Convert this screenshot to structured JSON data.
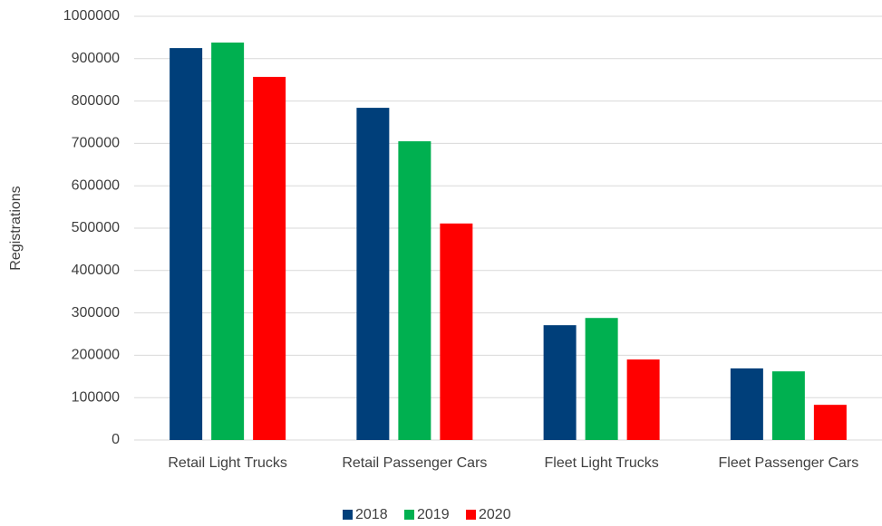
{
  "chart_data": {
    "type": "bar",
    "y_label": "Registrations",
    "categories": [
      "Retail Light Trucks",
      "Retail Passenger Cars",
      "Fleet Light Trucks",
      "Fleet Passenger Cars"
    ],
    "series": [
      {
        "name": "2018",
        "color": "#003f7a",
        "values": [
          925000,
          784000,
          271000,
          169000
        ]
      },
      {
        "name": "2019",
        "color": "#00b050",
        "values": [
          938000,
          705000,
          288000,
          162000
        ]
      },
      {
        "name": "2020",
        "color": "#ff0000",
        "values": [
          857000,
          511000,
          190000,
          83000
        ]
      }
    ],
    "ylim": [
      0,
      1000000
    ],
    "yticks": [
      0,
      100000,
      200000,
      300000,
      400000,
      500000,
      600000,
      700000,
      800000,
      900000,
      1000000
    ],
    "grid": true,
    "legend": "bottom"
  }
}
